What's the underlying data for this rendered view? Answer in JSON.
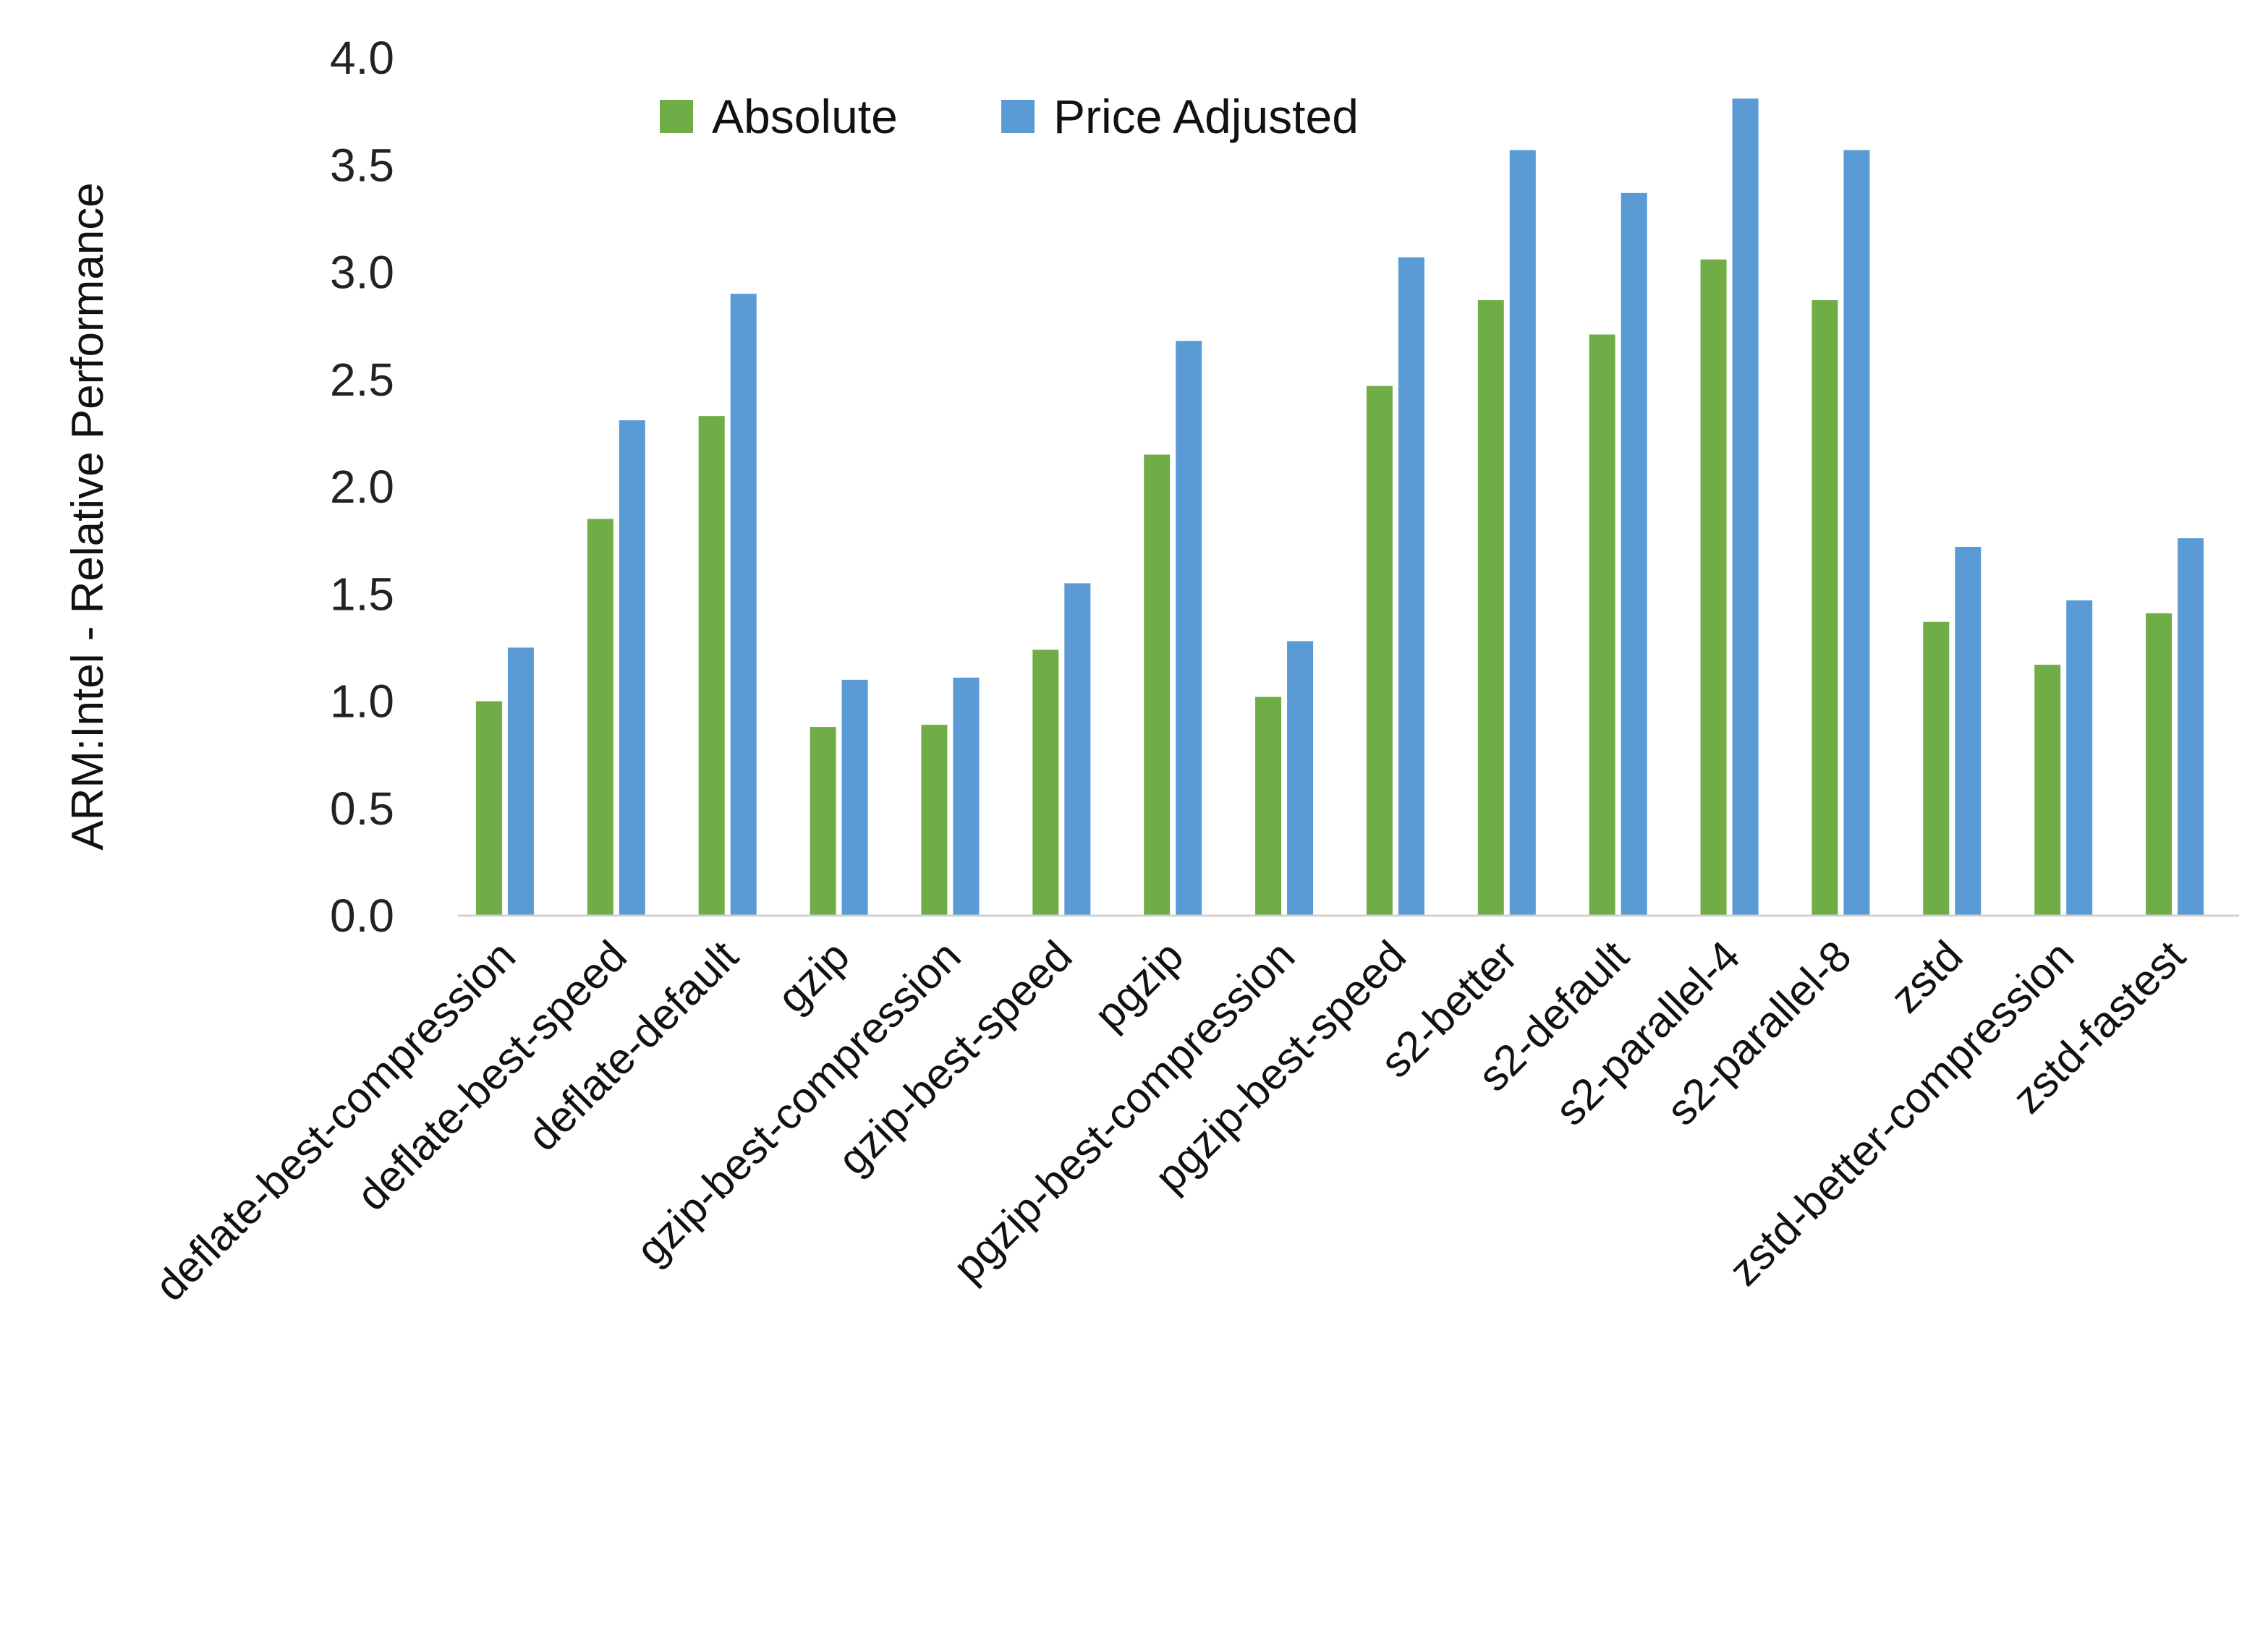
{
  "chart_data": {
    "type": "bar",
    "title": "",
    "xlabel": "",
    "ylabel": "ARM:Intel - Relative Performance",
    "ylim": [
      0,
      4.0
    ],
    "yticks": [
      "0.0",
      "0.5",
      "1.0",
      "1.5",
      "2.0",
      "2.5",
      "3.0",
      "3.5",
      "4.0"
    ],
    "grid": false,
    "legend_position": "top-center",
    "categories": [
      "deflate-best-compression",
      "deflate-best-speed",
      "deflate-default",
      "gzip",
      "gzip-best-compression",
      "gzip-best-speed",
      "pgzip",
      "pgzip-best-compression",
      "pgzip-best-speed",
      "s2-better",
      "s2-default",
      "s2-parallel-4",
      "s2-parallel-8",
      "zstd",
      "zstd-better-compression",
      "zstd-fastest"
    ],
    "series": [
      {
        "name": "Absolute",
        "color": "#70AD47",
        "values": [
          1.0,
          1.85,
          2.33,
          0.88,
          0.89,
          1.24,
          2.15,
          1.02,
          2.47,
          2.87,
          2.71,
          3.06,
          2.87,
          1.37,
          1.17,
          1.41
        ]
      },
      {
        "name": "Price Adjusted",
        "color": "#5B9BD5",
        "values": [
          1.25,
          2.31,
          2.9,
          1.1,
          1.11,
          1.55,
          2.68,
          1.28,
          3.07,
          3.57,
          3.37,
          3.81,
          3.57,
          1.72,
          1.47,
          1.76
        ]
      }
    ]
  }
}
